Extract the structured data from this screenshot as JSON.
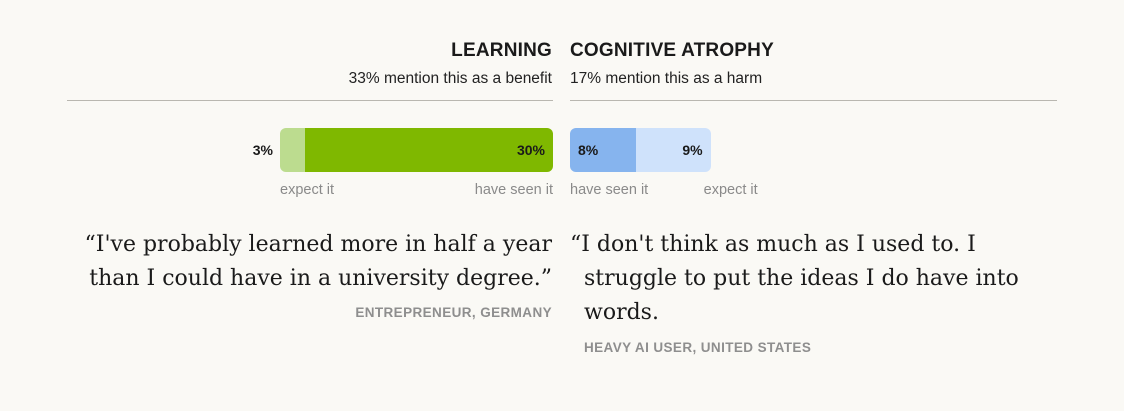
{
  "left": {
    "title": "LEARNING",
    "subtitle": "33% mention this as a benefit",
    "quote": "“I've probably learned more in half a year than I could have in a university degree.”",
    "attribution": "ENTREPRENEUR, GERMANY",
    "labels": {
      "expect": "expect it",
      "seen": "have seen it"
    }
  },
  "right": {
    "title": "COGNITIVE ATROPHY",
    "subtitle": "17% mention this as a harm",
    "quote": "“I don't think as much as I used to. I struggle to put the ideas I do have into words.",
    "attribution": "HEAVY AI USER, UNITED STATES",
    "labels": {
      "seen": "have seen it",
      "expect": "expect it"
    }
  },
  "colors": {
    "learning_seen": "#7fb800",
    "learning_expect": "#bcdc8f",
    "atrophy_seen": "#86b4ee",
    "atrophy_expect": "#cfe2fb"
  },
  "chart_data": [
    {
      "type": "bar",
      "orientation": "horizontal-stacked",
      "direction": "right-to-left",
      "title": "LEARNING",
      "subtitle": "33% mention this as a benefit",
      "series": [
        {
          "name": "have seen it",
          "values": [
            30
          ],
          "label": "30%"
        },
        {
          "name": "expect it",
          "values": [
            3
          ],
          "label": "3%"
        }
      ]
    },
    {
      "type": "bar",
      "orientation": "horizontal-stacked",
      "direction": "left-to-right",
      "title": "COGNITIVE ATROPHY",
      "subtitle": "17% mention this as a harm",
      "series": [
        {
          "name": "have seen it",
          "values": [
            8
          ],
          "label": "8%"
        },
        {
          "name": "expect it",
          "values": [
            9
          ],
          "label": "9%"
        }
      ]
    }
  ]
}
